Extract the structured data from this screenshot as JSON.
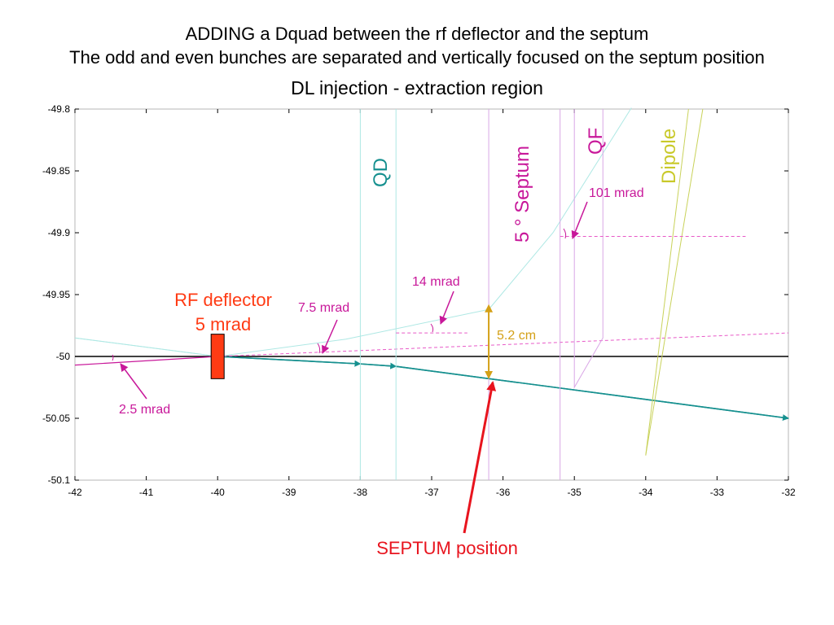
{
  "titles": {
    "line1": "ADDING a Dquad between the rf deflector and the septum",
    "line2": "The odd and even bunches are separated and vertically focused on the septum position",
    "chart_title": "DL injection - extraction region"
  },
  "colors": {
    "axis": "#000000",
    "teal": "#16908f",
    "cyan": "#aee8e4",
    "magenta": "#c8189a",
    "pink": "#e85ac8",
    "lavender": "#d9a6e6",
    "olive": "#c9d25a",
    "orange": "#ff3b14",
    "gold": "#d4a017",
    "red": "#e8141e"
  },
  "chart_data": {
    "type": "line",
    "xlim": [
      -42,
      -32
    ],
    "ylim": [
      -50.1,
      -49.8
    ],
    "xticks": [
      -42,
      -41,
      -40,
      -39,
      -38,
      -37,
      -36,
      -35,
      -34,
      -33,
      -32
    ],
    "yticks": [
      -49.8,
      -49.85,
      -49.9,
      -49.95,
      -50,
      -50.05,
      -50.1
    ],
    "xtick_labels": [
      "-42",
      "-41",
      "-40",
      "-39",
      "-38",
      "-37",
      "-36",
      "-35",
      "-34",
      "-33",
      "-32"
    ],
    "ytick_labels": [
      "-49.8",
      "-49.85",
      "-49.9",
      "-49.95",
      "-50",
      "-50.05",
      "-50.1"
    ],
    "grid": false,
    "series": [
      {
        "role": "reference-orbit",
        "color": "axis",
        "x": [
          -42,
          -32
        ],
        "y": [
          -50.0,
          -50.0
        ]
      },
      {
        "role": "deflected-beam-down",
        "color": "teal",
        "arrows": true,
        "x": [
          -40,
          -38,
          -37.5,
          -32
        ],
        "y": [
          -50.0,
          -50.006,
          -50.008,
          -50.05
        ]
      },
      {
        "role": "incoming-beam",
        "color": "magenta",
        "x": [
          -42,
          -40
        ],
        "y": [
          -50.007,
          -50.0
        ]
      },
      {
        "role": "deflected-beam-up-dashed",
        "color": "pink",
        "dashed": true,
        "x": [
          -40,
          -32
        ],
        "y": [
          -50.0,
          -49.981
        ]
      },
      {
        "role": "envelope-upper",
        "color": "cyan",
        "x": [
          -42,
          -40,
          -38.2,
          -36.2,
          -35.3,
          -34.2
        ],
        "y": [
          -49.985,
          -50.0,
          -49.986,
          -49.962,
          -49.9,
          -49.799
        ]
      },
      {
        "role": "envelope-lower",
        "color": "cyan",
        "x": [
          -42,
          -40
        ],
        "y": [
          -49.985,
          -50.0
        ]
      },
      {
        "role": "qd-line-1",
        "color": "cyan",
        "x": [
          -38.0,
          -38.0
        ],
        "y": [
          -49.8,
          -50.1
        ]
      },
      {
        "role": "qd-line-2",
        "color": "cyan",
        "x": [
          -37.5,
          -37.5
        ],
        "y": [
          -49.8,
          -50.1
        ]
      },
      {
        "role": "septum-wall-1",
        "color": "lavender",
        "x": [
          -36.2,
          -36.2
        ],
        "y": [
          -49.8,
          -50.1
        ]
      },
      {
        "role": "septum-wall-2",
        "color": "lavender",
        "x": [
          -35.2,
          -35.2
        ],
        "y": [
          -49.8,
          -50.1
        ]
      },
      {
        "role": "qf-line",
        "color": "lavender",
        "x": [
          -35.0,
          -35.0,
          -34.6,
          -34.6
        ],
        "y": [
          -49.8,
          -50.025,
          -49.985,
          -49.8
        ]
      },
      {
        "role": "dipole-line-1",
        "color": "olive",
        "x": [
          -34.0,
          -33.4
        ],
        "y": [
          -50.08,
          -49.8
        ]
      },
      {
        "role": "dipole-line-2",
        "color": "olive",
        "x": [
          -34.0,
          -33.2
        ],
        "y": [
          -50.08,
          -49.8
        ]
      },
      {
        "role": "dashed-14mrad-ref",
        "color": "pink",
        "dashed": true,
        "x": [
          -37.5,
          -36.5
        ],
        "y": [
          -49.981,
          -49.981
        ]
      },
      {
        "role": "dashed-101mrad-ref",
        "color": "pink",
        "dashed": true,
        "x": [
          -35.2,
          -32.6
        ],
        "y": [
          -49.903,
          -49.903
        ]
      }
    ],
    "annotations": {
      "qd": "QD",
      "septum": "5 ° Septum",
      "qf": "QF",
      "dipole": "Dipole",
      "mrad_101": "101 mrad",
      "mrad_14": "14 mrad",
      "mrad_7_5": "7.5 mrad",
      "mrad_2_5": "2.5 mrad",
      "separation": "5.2 cm",
      "rf_line1": "RF deflector",
      "rf_line2": "5 mrad",
      "septum_position": "SEPTUM position"
    }
  }
}
